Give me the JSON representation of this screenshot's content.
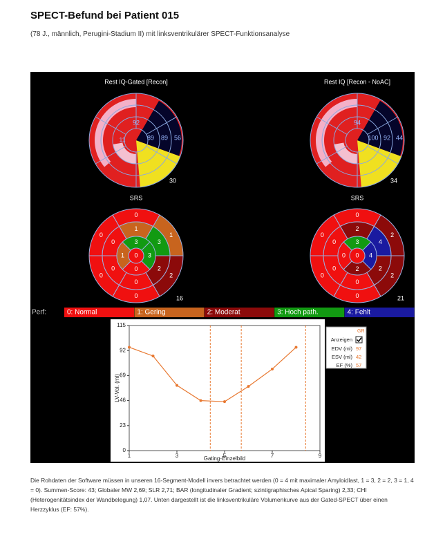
{
  "header": {
    "title": "SPECT-Befund bei Patient 015",
    "subtitle": "(78 J., männlich, Perugini-Stadium II) mit linksventrikulärer SPECT-Funktionsanalyse"
  },
  "figure": {
    "rest_maps": [
      {
        "title": "Rest IQ-Gated [Recon]",
        "labels": [
          92,
          11,
          89,
          89,
          56
        ],
        "corner": 30
      },
      {
        "title": "Rest IQ [Recon - NoAC]",
        "labels": [
          94,
          100,
          92,
          44
        ],
        "corner": 34
      }
    ],
    "srs_maps": [
      {
        "title": "SRS",
        "apex": 0,
        "inner": [
          3,
          3,
          0,
          1
        ],
        "mid": [
          1,
          3,
          2,
          0,
          0,
          0
        ],
        "outer": [
          0,
          1,
          2,
          0,
          0,
          0
        ],
        "corner": 16
      },
      {
        "title": "SRS",
        "apex": 0,
        "inner": [
          3,
          4,
          2,
          0
        ],
        "mid": [
          2,
          4,
          2,
          0,
          0,
          0
        ],
        "outer": [
          0,
          2,
          2,
          0,
          0,
          0
        ],
        "corner": 21
      }
    ],
    "legend": {
      "label": "Perf:",
      "items": [
        {
          "text": "0: Normal",
          "color": "#f01010"
        },
        {
          "text": "1: Gering",
          "color": "#c8641e"
        },
        {
          "text": "2: Moderat",
          "color": "#8c0a0a"
        },
        {
          "text": "3: Hoch path.",
          "color": "#129a12"
        },
        {
          "text": "4: Fehlt",
          "color": "#1a1aa0"
        }
      ]
    },
    "volume_panel": {
      "header": "GR",
      "show_label": "Anzeigen",
      "show_checked": true,
      "rows": [
        {
          "label": "EDV (ml)",
          "value": 97
        },
        {
          "label": "ESV (ml)",
          "value": 42
        },
        {
          "label": "EF (%)",
          "value": 57
        }
      ]
    }
  },
  "chart_data": {
    "type": "line",
    "x_label": "Gating-Einzelbild",
    "y_label": "LV-Vol. (ml)",
    "x": [
      1,
      2,
      3,
      4,
      5,
      6,
      7,
      8
    ],
    "values": [
      95,
      87,
      60,
      46,
      45,
      59,
      75,
      95
    ],
    "color": "#e87830",
    "xlim": [
      1,
      9
    ],
    "xticks": [
      1,
      3,
      5,
      7,
      9
    ],
    "ylim": [
      0,
      115
    ],
    "yticks": [
      0,
      23,
      46,
      69,
      92,
      115
    ],
    "vlines": [
      4.4,
      5.7,
      8.4
    ]
  },
  "caption": "Die Rohdaten der Software müssen in unseren 16-Segment-Modell invers betrachtet werden (0 = 4 mit maximaler Amyloidlast, 1 = 3, 2 = 2, 3 = 1, 4 = 0). Summen-Score: 43; Globaler MW 2,69; SLR 2,71; BAR (longitudinaler Gradient; szintigraphisches Apical Sparing) 2,33; CHI (Heterogenitätsindex der Wandbelegung) 1,07. Unten dargestellt ist die linksventrikuläre Volumenkurve aus der Gated-SPECT über einen Herzzyklus (EF: 57%)."
}
